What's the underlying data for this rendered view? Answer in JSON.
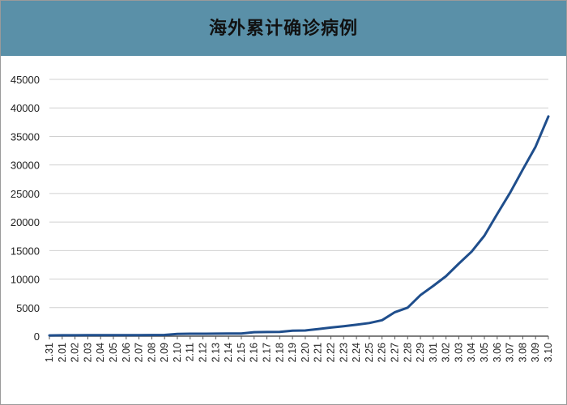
{
  "header": {
    "title": "海外累计确诊病例"
  },
  "colors": {
    "header_bg": "#5a90a8",
    "line": "#1f4e8c",
    "grid": "#d0d0d0",
    "axis": "#555555"
  },
  "chart_data": {
    "type": "line",
    "title": "海外累计确诊病例",
    "xlabel": "",
    "ylabel": "",
    "ylim": [
      0,
      45000
    ],
    "yticks": [
      0,
      5000,
      10000,
      15000,
      20000,
      25000,
      30000,
      35000,
      40000,
      45000
    ],
    "grid": true,
    "legend": "none",
    "categories": [
      "1.31",
      "2.01",
      "2.02",
      "2.03",
      "2.04",
      "2.05",
      "2.06",
      "2.07",
      "2.08",
      "2.09",
      "2.10",
      "2.11",
      "2.12",
      "2.13",
      "2.14",
      "2.15",
      "2.16",
      "2.17",
      "2.18",
      "2.19",
      "2.20",
      "2.21",
      "2.22",
      "2.23",
      "2.24",
      "2.25",
      "2.26",
      "2.27",
      "2.28",
      "2.29",
      "3.01",
      "3.02",
      "3.03",
      "3.04",
      "3.05",
      "3.06",
      "3.07",
      "3.08",
      "3.09",
      "3.10"
    ],
    "series": [
      {
        "values": [
          130,
          150,
          160,
          170,
          175,
          180,
          185,
          190,
          200,
          210,
          400,
          420,
          430,
          440,
          450,
          470,
          700,
          720,
          740,
          950,
          1000,
          1250,
          1500,
          1750,
          2000,
          2300,
          2800,
          4200,
          5000,
          7200,
          8800,
          10500,
          12700,
          14800,
          17600,
          21400,
          25100,
          29200,
          33200,
          38500
        ]
      }
    ]
  }
}
